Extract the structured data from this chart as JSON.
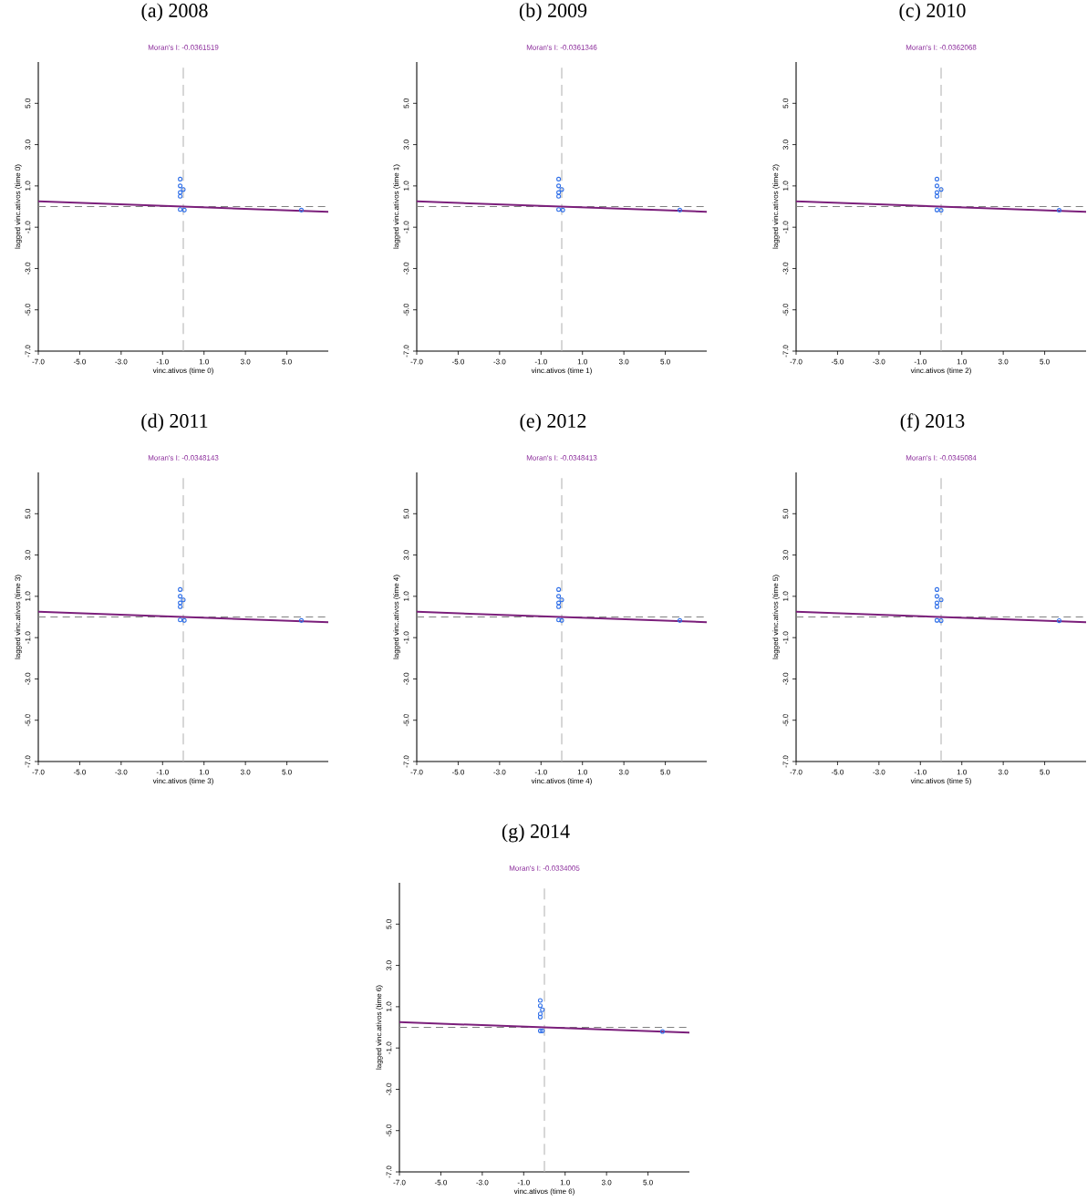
{
  "chart_data": [
    {
      "type": "scatter",
      "title": "(a) 2008",
      "subtitle": "Moran's I: -0.0361519",
      "xlabel": "vinc.ativos (time 0)",
      "ylabel": "lagged vinc.ativos (time 0)",
      "xlim": [
        -7,
        7
      ],
      "ylim": [
        -7,
        7
      ],
      "xticks": [
        {
          "value": -7,
          "label": "-7.0"
        },
        {
          "value": -5,
          "label": "-5.0"
        },
        {
          "value": -3,
          "label": "-3.0"
        },
        {
          "value": -1,
          "label": "-1.0"
        },
        {
          "value": 1,
          "label": "1.0"
        },
        {
          "value": 3,
          "label": "3.0"
        },
        {
          "value": 5,
          "label": "5.0"
        }
      ],
      "yticks": [
        {
          "value": -7,
          "label": "-7.0"
        },
        {
          "value": -5,
          "label": "-5.0"
        },
        {
          "value": -3,
          "label": "-3.0"
        },
        {
          "value": -1,
          "label": "-1.0"
        },
        {
          "value": 1,
          "label": "1.0"
        },
        {
          "value": 3,
          "label": "3.0"
        },
        {
          "value": 5,
          "label": "5.0"
        }
      ],
      "series": [
        {
          "marker": "circle",
          "color": "#2f6fe8",
          "x": [
            -0.15,
            -0.15,
            0.0,
            -0.15,
            -0.15,
            -0.15,
            0.05,
            5.7
          ],
          "values": [
            1.33,
            1.0,
            0.83,
            0.68,
            0.5,
            -0.14,
            -0.17,
            -0.17
          ]
        },
        {
          "type": "line",
          "marker": "none",
          "color": "#7b1f7b",
          "x": [
            -7,
            7
          ],
          "values": [
            0.25,
            -0.25
          ]
        }
      ],
      "ref_lines": [
        {
          "axis": "x",
          "value": 0,
          "color": "#b4b4b4",
          "line_style": "dashed"
        },
        {
          "axis": "y",
          "value": 0,
          "color": "#808080",
          "line_style": "dashed"
        }
      ]
    },
    {
      "type": "scatter",
      "title": "(b) 2009",
      "subtitle": "Moran's I: -0.0361346",
      "xlabel": "vinc.ativos (time 1)",
      "ylabel": "lagged vinc.ativos (time 1)",
      "xlim": [
        -7,
        7
      ],
      "ylim": [
        -7,
        7
      ],
      "xticks": [
        {
          "value": -7,
          "label": "-7.0"
        },
        {
          "value": -5,
          "label": "-5.0"
        },
        {
          "value": -3,
          "label": "-3.0"
        },
        {
          "value": -1,
          "label": "-1.0"
        },
        {
          "value": 1,
          "label": "1.0"
        },
        {
          "value": 3,
          "label": "3.0"
        },
        {
          "value": 5,
          "label": "5.0"
        }
      ],
      "yticks": [
        {
          "value": -7,
          "label": "-7.0"
        },
        {
          "value": -5,
          "label": "-5.0"
        },
        {
          "value": -3,
          "label": "-3.0"
        },
        {
          "value": -1,
          "label": "-1.0"
        },
        {
          "value": 1,
          "label": "1.0"
        },
        {
          "value": 3,
          "label": "3.0"
        },
        {
          "value": 5,
          "label": "5.0"
        }
      ],
      "series": [
        {
          "marker": "circle",
          "color": "#2f6fe8",
          "x": [
            -0.15,
            -0.15,
            0.0,
            -0.15,
            -0.15,
            -0.15,
            0.05,
            5.7
          ],
          "values": [
            1.33,
            1.0,
            0.83,
            0.68,
            0.5,
            -0.14,
            -0.17,
            -0.17
          ]
        },
        {
          "type": "line",
          "marker": "none",
          "color": "#7b1f7b",
          "x": [
            -7,
            7
          ],
          "values": [
            0.25,
            -0.25
          ]
        }
      ],
      "ref_lines": [
        {
          "axis": "x",
          "value": 0,
          "color": "#b4b4b4",
          "line_style": "dashed"
        },
        {
          "axis": "y",
          "value": 0,
          "color": "#808080",
          "line_style": "dashed"
        }
      ]
    },
    {
      "type": "scatter",
      "title": "(c) 2010",
      "subtitle": "Moran's I: -0.0362068",
      "xlabel": "vinc.ativos (time 2)",
      "ylabel": "lagged vinc.ativos (time 2)",
      "xlim": [
        -7,
        7
      ],
      "ylim": [
        -7,
        7
      ],
      "xticks": [
        {
          "value": -7,
          "label": "-7.0"
        },
        {
          "value": -5,
          "label": "-5.0"
        },
        {
          "value": -3,
          "label": "-3.0"
        },
        {
          "value": -1,
          "label": "-1.0"
        },
        {
          "value": 1,
          "label": "1.0"
        },
        {
          "value": 3,
          "label": "3.0"
        },
        {
          "value": 5,
          "label": "5.0"
        }
      ],
      "yticks": [
        {
          "value": -7,
          "label": "-7.0"
        },
        {
          "value": -5,
          "label": "-5.0"
        },
        {
          "value": -3,
          "label": "-3.0"
        },
        {
          "value": -1,
          "label": "-1.0"
        },
        {
          "value": 1,
          "label": "1.0"
        },
        {
          "value": 3,
          "label": "3.0"
        },
        {
          "value": 5,
          "label": "5.0"
        }
      ],
      "series": [
        {
          "marker": "circle",
          "color": "#2f6fe8",
          "x": [
            -0.2,
            -0.2,
            0.0,
            -0.2,
            -0.2,
            -0.2,
            0.0,
            5.7
          ],
          "values": [
            1.33,
            1.0,
            0.83,
            0.68,
            0.5,
            -0.16,
            -0.18,
            -0.18
          ]
        },
        {
          "type": "line",
          "marker": "none",
          "color": "#7b1f7b",
          "x": [
            -7,
            7
          ],
          "values": [
            0.25,
            -0.25
          ]
        }
      ],
      "ref_lines": [
        {
          "axis": "x",
          "value": 0,
          "color": "#b4b4b4",
          "line_style": "dashed"
        },
        {
          "axis": "y",
          "value": 0,
          "color": "#808080",
          "line_style": "dashed"
        }
      ]
    },
    {
      "type": "scatter",
      "title": "(d) 2011",
      "subtitle": "Moran's I: -0.0348143",
      "xlabel": "vinc.ativos (time 3)",
      "ylabel": "lagged vinc.ativos (time 3)",
      "xlim": [
        -7,
        7
      ],
      "ylim": [
        -7,
        7
      ],
      "xticks": [
        {
          "value": -7,
          "label": "-7.0"
        },
        {
          "value": -5,
          "label": "-5.0"
        },
        {
          "value": -3,
          "label": "-3.0"
        },
        {
          "value": -1,
          "label": "-1.0"
        },
        {
          "value": 1,
          "label": "1.0"
        },
        {
          "value": 3,
          "label": "3.0"
        },
        {
          "value": 5,
          "label": "5.0"
        }
      ],
      "yticks": [
        {
          "value": -7,
          "label": "-7.0"
        },
        {
          "value": -5,
          "label": "-5.0"
        },
        {
          "value": -3,
          "label": "-3.0"
        },
        {
          "value": -1,
          "label": "-1.0"
        },
        {
          "value": 1,
          "label": "1.0"
        },
        {
          "value": 3,
          "label": "3.0"
        },
        {
          "value": 5,
          "label": "5.0"
        }
      ],
      "series": [
        {
          "marker": "circle",
          "color": "#2f6fe8",
          "x": [
            -0.15,
            -0.15,
            0.0,
            -0.15,
            -0.15,
            -0.15,
            0.05,
            5.7
          ],
          "values": [
            1.33,
            1.0,
            0.83,
            0.68,
            0.5,
            -0.14,
            -0.17,
            -0.17
          ]
        },
        {
          "type": "line",
          "marker": "none",
          "color": "#7b1f7b",
          "x": [
            -7,
            7
          ],
          "values": [
            0.25,
            -0.25
          ]
        }
      ],
      "ref_lines": [
        {
          "axis": "x",
          "value": 0,
          "color": "#b4b4b4",
          "line_style": "dashed"
        },
        {
          "axis": "y",
          "value": 0,
          "color": "#808080",
          "line_style": "dashed"
        }
      ]
    },
    {
      "type": "scatter",
      "title": "(e) 2012",
      "subtitle": "Moran's I: -0.0348413",
      "xlabel": "vinc.ativos (time 4)",
      "ylabel": "lagged vinc.ativos (time 4)",
      "xlim": [
        -7,
        7
      ],
      "ylim": [
        -7,
        7
      ],
      "xticks": [
        {
          "value": -7,
          "label": "-7.0"
        },
        {
          "value": -5,
          "label": "-5.0"
        },
        {
          "value": -3,
          "label": "-3.0"
        },
        {
          "value": -1,
          "label": "-1.0"
        },
        {
          "value": 1,
          "label": "1.0"
        },
        {
          "value": 3,
          "label": "3.0"
        },
        {
          "value": 5,
          "label": "5.0"
        }
      ],
      "yticks": [
        {
          "value": -7,
          "label": "-7.0"
        },
        {
          "value": -5,
          "label": "-5.0"
        },
        {
          "value": -3,
          "label": "-3.0"
        },
        {
          "value": -1,
          "label": "-1.0"
        },
        {
          "value": 1,
          "label": "1.0"
        },
        {
          "value": 3,
          "label": "3.0"
        },
        {
          "value": 5,
          "label": "5.0"
        }
      ],
      "series": [
        {
          "marker": "circle",
          "color": "#2f6fe8",
          "x": [
            -0.15,
            -0.15,
            0.0,
            -0.15,
            -0.15,
            -0.15,
            0.0,
            5.7
          ],
          "values": [
            1.33,
            1.0,
            0.83,
            0.68,
            0.5,
            -0.14,
            -0.17,
            -0.17
          ]
        },
        {
          "type": "line",
          "marker": "none",
          "color": "#7b1f7b",
          "x": [
            -7,
            7
          ],
          "values": [
            0.25,
            -0.25
          ]
        }
      ],
      "ref_lines": [
        {
          "axis": "x",
          "value": 0,
          "color": "#b4b4b4",
          "line_style": "dashed"
        },
        {
          "axis": "y",
          "value": 0,
          "color": "#808080",
          "line_style": "dashed"
        }
      ]
    },
    {
      "type": "scatter",
      "title": "(f) 2013",
      "subtitle": "Moran's I: -0.0345084",
      "xlabel": "vinc.ativos (time 5)",
      "ylabel": "lagged vinc.ativos (time 5)",
      "xlim": [
        -7,
        7
      ],
      "ylim": [
        -7,
        7
      ],
      "xticks": [
        {
          "value": -7,
          "label": "-7.0"
        },
        {
          "value": -5,
          "label": "-5.0"
        },
        {
          "value": -3,
          "label": "-3.0"
        },
        {
          "value": -1,
          "label": "-1.0"
        },
        {
          "value": 1,
          "label": "1.0"
        },
        {
          "value": 3,
          "label": "3.0"
        },
        {
          "value": 5,
          "label": "5.0"
        }
      ],
      "yticks": [
        {
          "value": -7,
          "label": "-7.0"
        },
        {
          "value": -5,
          "label": "-5.0"
        },
        {
          "value": -3,
          "label": "-3.0"
        },
        {
          "value": -1,
          "label": "-1.0"
        },
        {
          "value": 1,
          "label": "1.0"
        },
        {
          "value": 3,
          "label": "3.0"
        },
        {
          "value": 5,
          "label": "5.0"
        }
      ],
      "series": [
        {
          "marker": "circle",
          "color": "#2f6fe8",
          "x": [
            -0.2,
            -0.2,
            0.0,
            -0.2,
            -0.2,
            -0.2,
            0.0,
            5.7
          ],
          "values": [
            1.33,
            1.0,
            0.83,
            0.68,
            0.5,
            -0.16,
            -0.18,
            -0.18
          ]
        },
        {
          "type": "line",
          "marker": "none",
          "color": "#7b1f7b",
          "x": [
            -7,
            7
          ],
          "values": [
            0.25,
            -0.25
          ]
        }
      ],
      "ref_lines": [
        {
          "axis": "x",
          "value": 0,
          "color": "#b4b4b4",
          "line_style": "dashed"
        },
        {
          "axis": "y",
          "value": 0,
          "color": "#808080",
          "line_style": "dashed"
        }
      ]
    },
    {
      "type": "scatter",
      "title": "(g) 2014",
      "subtitle": "Moran's I: -0.0334005",
      "xlabel": "vinc.ativos (time 6)",
      "ylabel": "lagged vinc.ativos (time 6)",
      "xlim": [
        -7,
        7
      ],
      "ylim": [
        -7,
        7
      ],
      "xticks": [
        {
          "value": -7,
          "label": "-7.0"
        },
        {
          "value": -5,
          "label": "-5.0"
        },
        {
          "value": -3,
          "label": "-3.0"
        },
        {
          "value": -1,
          "label": "-1.0"
        },
        {
          "value": 1,
          "label": "1.0"
        },
        {
          "value": 3,
          "label": "3.0"
        },
        {
          "value": 5,
          "label": "5.0"
        }
      ],
      "yticks": [
        {
          "value": -7,
          "label": "-7.0"
        },
        {
          "value": -5,
          "label": "-5.0"
        },
        {
          "value": -3,
          "label": "-3.0"
        },
        {
          "value": -1,
          "label": "-1.0"
        },
        {
          "value": 1,
          "label": "1.0"
        },
        {
          "value": 3,
          "label": "3.0"
        },
        {
          "value": 5,
          "label": "5.0"
        }
      ],
      "series": [
        {
          "marker": "circle",
          "color": "#2f6fe8",
          "x": [
            -0.2,
            -0.2,
            -0.1,
            -0.2,
            -0.2,
            -0.2,
            -0.1,
            5.7
          ],
          "values": [
            1.3,
            1.05,
            0.85,
            0.65,
            0.5,
            -0.17,
            -0.17,
            -0.2
          ]
        },
        {
          "type": "line",
          "marker": "none",
          "color": "#7b1f7b",
          "x": [
            -7,
            7
          ],
          "values": [
            0.25,
            -0.25
          ]
        }
      ],
      "ref_lines": [
        {
          "axis": "x",
          "value": 0,
          "color": "#b4b4b4",
          "line_style": "dashed"
        },
        {
          "axis": "y",
          "value": 0,
          "color": "#808080",
          "line_style": "dashed"
        }
      ]
    }
  ]
}
